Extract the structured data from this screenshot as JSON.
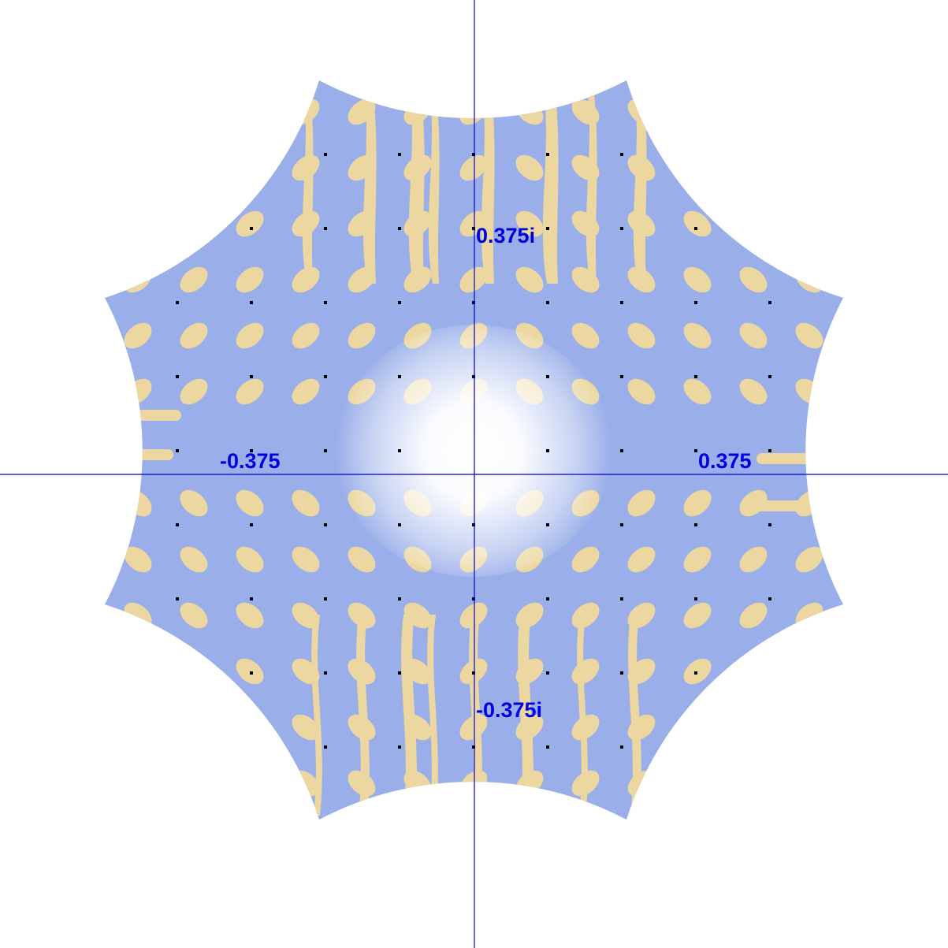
{
  "colors": {
    "background": "#ffffff",
    "region_fill": "#9aafe9",
    "blob_fill": "#ecd7a0",
    "axis": "#0000cc",
    "axis_label": "#0000dd",
    "marker": "#000000",
    "center_glow": "#ffffff"
  },
  "labels": {
    "x_negative": "-0.375",
    "x_positive": "0.375",
    "y_positive": "0.375i",
    "y_negative": "-0.375i"
  },
  "icons": {
    "marker": "black-dot-marker"
  },
  "description_scale": {
    "axis_units": "complex plane",
    "tick_value": 0.375
  }
}
